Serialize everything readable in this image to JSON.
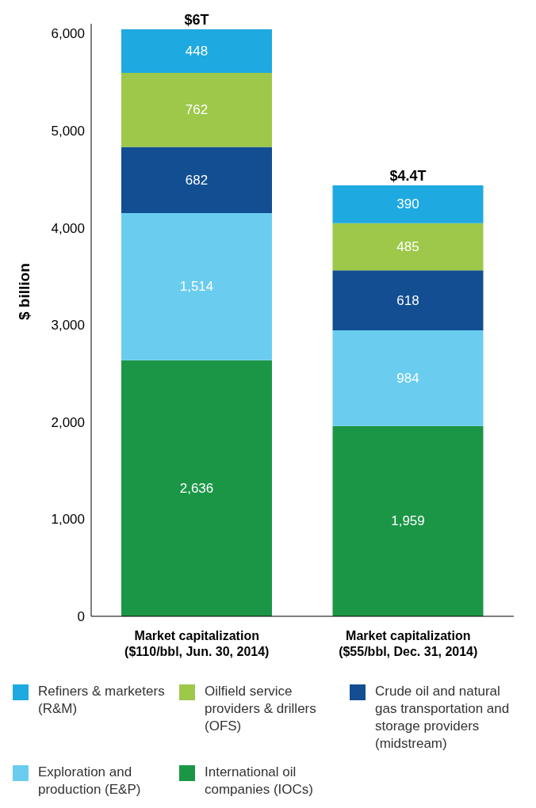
{
  "chart_data": {
    "type": "bar",
    "stacked": true,
    "ylabel": "$ billion",
    "categories": [
      "Market capitalization\n($110/bbl, Jun. 30, 2014)",
      "Market capitalization\n($55/bbl, Dec. 31, 2014)"
    ],
    "series": [
      {
        "name": "International oil companies (IOCs)",
        "color": "#1b9646",
        "values": [
          2636,
          1959
        ],
        "value_labels": [
          "2,636",
          "1,959"
        ]
      },
      {
        "name": "Exploration and production (E&P)",
        "color": "#6acdef",
        "values": [
          1514,
          984
        ],
        "value_labels": [
          "1,514",
          "984"
        ]
      },
      {
        "name": "Crude oil and natural gas transportation and storage providers (midstream)",
        "color": "#124e91",
        "values": [
          682,
          618
        ],
        "value_labels": [
          "682",
          "618"
        ]
      },
      {
        "name": "Oilfield service providers & drillers (OFS)",
        "color": "#9dc84a",
        "values": [
          762,
          485
        ],
        "value_labels": [
          "762",
          "485"
        ]
      },
      {
        "name": "Refiners & marketers (R&M)",
        "color": "#1ea9e1",
        "values": [
          448,
          390
        ],
        "value_labels": [
          "448",
          "390"
        ]
      }
    ],
    "ylim": [
      0,
      6100
    ],
    "yticks": [
      0,
      {
        "value": 1000,
        "label": "1,000"
      },
      {
        "value": 2000,
        "label": "2,000"
      },
      {
        "value": 3000,
        "label": "3,000"
      },
      {
        "value": 4000,
        "label": "4,000"
      },
      {
        "value": 5000,
        "label": "5,000"
      },
      {
        "value": 6000,
        "label": "6,000"
      }
    ],
    "totals": [
      "$6T",
      "$4.4T"
    ],
    "legend": "bottom",
    "grid": false
  }
}
